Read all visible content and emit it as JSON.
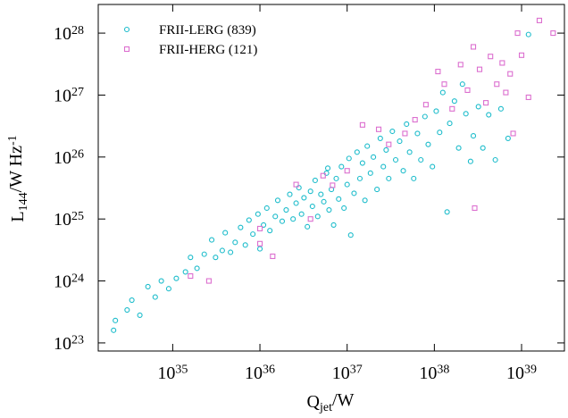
{
  "chart_data": {
    "type": "scatter",
    "xlabel": "Q_jet/W",
    "ylabel": "L_144/W Hz^-1",
    "xscale": "log",
    "yscale": "log",
    "xlim": [
      1.4e+34,
      3.1e+39
    ],
    "ylim": [
      7.4e+22,
      2.9e+28
    ],
    "xticks": [
      {
        "value": 1e+35,
        "label": "10^35"
      },
      {
        "value": 1e+36,
        "label": "10^36"
      },
      {
        "value": 1e+37,
        "label": "10^37"
      },
      {
        "value": 1e+38,
        "label": "10^38"
      },
      {
        "value": 1e+39,
        "label": "10^39"
      }
    ],
    "yticks": [
      {
        "value": 1e+23,
        "label": "10^23"
      },
      {
        "value": 1e+24,
        "label": "10^24"
      },
      {
        "value": 1e+25,
        "label": "10^25"
      },
      {
        "value": 1e+26,
        "label": "10^26"
      },
      {
        "value": 1e+27,
        "label": "10^27"
      },
      {
        "value": 1e+28,
        "label": "10^28"
      }
    ],
    "legend": "upper left",
    "series": [
      {
        "name": "FRII-LERG (839)",
        "color": "#1cbccb",
        "marker": "circle",
        "x": [
          2.1e+34,
          2.2e+34,
          3e+34,
          3.4e+34,
          4.2e+34,
          5.2e+34,
          6.3e+34,
          7.4e+34,
          9e+34,
          1.1e+35,
          1.4e+35,
          1.6e+35,
          1.9e+35,
          2.3e+35,
          2.8e+35,
          3.1e+35,
          3.7e+35,
          4e+35,
          4.6e+35,
          5.2e+35,
          6e+35,
          6.8e+35,
          7.5e+35,
          8.3e+35,
          9.5e+35,
          1.1e+36,
          1.2e+36,
          1.3e+36,
          1.5e+36,
          1.6e+36,
          1.8e+36,
          2e+36,
          2.2e+36,
          2.4e+36,
          2.6e+36,
          2.8e+36,
          3e+36,
          3.2e+36,
          3.5e+36,
          3.8e+36,
          4e+36,
          4.3e+36,
          4.6e+36,
          5e+36,
          5.4e+36,
          5.8e+36,
          6.2e+36,
          6.6e+36,
          7e+36,
          7.5e+36,
          8e+36,
          8.6e+36,
          9.2e+36,
          1e+37,
          1.05e+37,
          1.1e+37,
          1.2e+37,
          1.3e+37,
          1.4e+37,
          1.5e+37,
          1.6e+37,
          1.7e+37,
          1.85e+37,
          2e+37,
          2.2e+37,
          2.4e+37,
          2.6e+37,
          2.8e+37,
          3e+37,
          3.3e+37,
          3.6e+37,
          4e+37,
          4.4e+37,
          4.8e+37,
          5.2e+37,
          5.8e+37,
          6.4e+37,
          7e+37,
          7.8e+37,
          8.5e+37,
          9.5e+37,
          1.05e+38,
          1.15e+38,
          1.25e+38,
          1.4e+38,
          1.5e+38,
          1.7e+38,
          1.9e+38,
          2.1e+38,
          2.3e+38,
          2.6e+38,
          2.8e+38,
          3.2e+38,
          3.6e+38,
          4.2e+38,
          5e+38,
          5.8e+38,
          7e+38,
          1.2e+39,
          1e+36,
          6e+36
        ],
        "values": [
          1.6e+23,
          2.3e+23,
          3.4e+23,
          4.9e+23,
          2.8e+23,
          8.1e+23,
          5.5e+23,
          1e+24,
          7.5e+23,
          1.1e+24,
          1.4e+24,
          2.4e+24,
          1.6e+24,
          2.7e+24,
          4.6e+24,
          2.4e+24,
          3.1e+24,
          6e+24,
          2.9e+24,
          4.2e+24,
          7.3e+24,
          3.8e+24,
          9.6e+24,
          5.7e+24,
          1.2e+25,
          8e+24,
          1.5e+25,
          6.5e+24,
          1.1e+25,
          2e+25,
          9.2e+24,
          1.4e+25,
          2.5e+25,
          1e+25,
          1.8e+25,
          3.2e+25,
          1.2e+25,
          2.2e+25,
          7.5e+24,
          2.8e+25,
          1.6e+25,
          4.2e+25,
          1.1e+25,
          2.5e+25,
          1.9e+25,
          5.5e+25,
          1.4e+25,
          3e+25,
          8e+24,
          4.5e+25,
          2.1e+25,
          7e+25,
          1.5e+25,
          3.6e+25,
          9.5e+25,
          5.5e+24,
          2.6e+25,
          1.2e+26,
          4.5e+25,
          8e+25,
          2e+25,
          1.5e+26,
          5.5e+25,
          1e+26,
          3e+25,
          2e+26,
          7e+25,
          1.3e+26,
          4.5e+25,
          2.6e+26,
          9e+25,
          1.8e+26,
          6e+25,
          3.4e+26,
          1.2e+26,
          4.5e+25,
          2.4e+26,
          9e+25,
          4.5e+26,
          1.6e+26,
          7e+25,
          5.5e+26,
          2.5e+26,
          1.1e+27,
          1.3e+25,
          3.5e+26,
          8e+26,
          1.4e+26,
          1.5e+27,
          5e+26,
          8.5e+25,
          2.2e+26,
          6.5e+26,
          1.4e+26,
          4.8e+26,
          9e+25,
          6e+26,
          2e+26,
          9.5e+27,
          3.3e+24,
          6.6e+25
        ]
      },
      {
        "name": "FRII-HERG (121)",
        "color": "#dc6fcf",
        "marker": "square",
        "x": [
          1.6e+35,
          2.6e+35,
          1e+36,
          1e+36,
          1.4e+36,
          2.6e+36,
          3.8e+36,
          5.3e+36,
          6.8e+36,
          1e+37,
          1.5e+37,
          2.3e+37,
          3e+37,
          4.6e+37,
          6e+37,
          8e+37,
          1.1e+38,
          1.3e+38,
          1.6e+38,
          2e+38,
          2.4e+38,
          2.8e+38,
          3.3e+38,
          3.9e+38,
          4.4e+38,
          5.2e+38,
          6e+38,
          6.6e+38,
          7.4e+38,
          8e+38,
          9e+38,
          1e+39,
          1.2e+39,
          1.6e+39,
          2.3e+39,
          2.9e+38
        ],
        "values": [
          1.2e+24,
          1e+24,
          7e+24,
          4e+24,
          2.5e+24,
          3.6e+25,
          1e+25,
          5e+25,
          3.5e+25,
          6e+25,
          3.3e+26,
          2.8e+26,
          1.6e+26,
          2.4e+26,
          4e+26,
          7e+26,
          2.4e+27,
          1.5e+27,
          6e+26,
          3.1e+27,
          1.2e+27,
          6e+27,
          2.6e+27,
          7.5e+26,
          4.2e+27,
          1.5e+27,
          3.3e+27,
          1.1e+27,
          2.2e+27,
          2.4e+26,
          1e+28,
          4.4e+27,
          9.2e+26,
          1.6e+28,
          1e+28,
          1.5e+25
        ]
      }
    ]
  }
}
